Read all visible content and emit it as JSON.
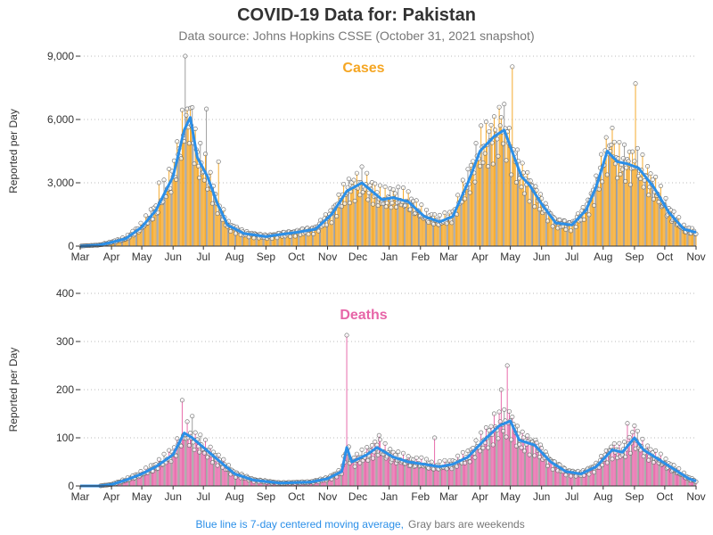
{
  "header": {
    "title": "COVID-19 Data for: Pakistan",
    "subtitle": "Data source: Johns Hopkins CSSE (October 31, 2021 snapshot)"
  },
  "footer": {
    "blue_note": "Blue line is 7-day centered moving average,",
    "gray_note": "Gray bars are weekends"
  },
  "colors": {
    "cases_bar": "#f5a623",
    "deaths_bar": "#e765a8",
    "weekend_bar": "#999999",
    "moving_average": "#2b8fe8",
    "grid": "#bbbbbb"
  },
  "chart_data": [
    {
      "type": "bar",
      "title": "Cases",
      "ylabel": "Reported per Day",
      "ylim": [
        0,
        9000
      ],
      "yticks": [
        "0",
        "3,000",
        "6,000",
        "9,000"
      ],
      "xticks": [
        "Mar",
        "Apr",
        "May",
        "Jun",
        "Jul",
        "Aug",
        "Sep",
        "Oct",
        "Nov",
        "Dec",
        "Jan",
        "Feb",
        "Mar",
        "Apr",
        "May",
        "Jun",
        "Jul",
        "Aug",
        "Sep",
        "Oct",
        "Nov"
      ],
      "grid": "horizontal dotted",
      "x_range": [
        "2020-03-01",
        "2021-11-01"
      ],
      "moving_average_keypoints": [
        [
          "2020-03-01",
          0
        ],
        [
          "2020-03-20",
          50
        ],
        [
          "2020-04-01",
          180
        ],
        [
          "2020-04-15",
          350
        ],
        [
          "2020-05-01",
          900
        ],
        [
          "2020-05-15",
          1700
        ],
        [
          "2020-06-01",
          3300
        ],
        [
          "2020-06-12",
          5500
        ],
        [
          "2020-06-18",
          6100
        ],
        [
          "2020-06-25",
          4200
        ],
        [
          "2020-07-05",
          3300
        ],
        [
          "2020-07-15",
          2000
        ],
        [
          "2020-07-25",
          1000
        ],
        [
          "2020-08-10",
          600
        ],
        [
          "2020-09-01",
          450
        ],
        [
          "2020-09-15",
          550
        ],
        [
          "2020-10-01",
          650
        ],
        [
          "2020-10-20",
          800
        ],
        [
          "2020-11-05",
          1500
        ],
        [
          "2020-11-20",
          2600
        ],
        [
          "2020-12-05",
          3000
        ],
        [
          "2020-12-15",
          2600
        ],
        [
          "2020-12-25",
          2200
        ],
        [
          "2021-01-05",
          2300
        ],
        [
          "2021-01-20",
          2100
        ],
        [
          "2021-02-05",
          1400
        ],
        [
          "2021-02-20",
          1150
        ],
        [
          "2021-03-05",
          1400
        ],
        [
          "2021-03-20",
          3000
        ],
        [
          "2021-04-01",
          4500
        ],
        [
          "2021-04-15",
          5200
        ],
        [
          "2021-04-25",
          5500
        ],
        [
          "2021-05-05",
          4200
        ],
        [
          "2021-05-12",
          3300
        ],
        [
          "2021-05-20",
          2900
        ],
        [
          "2021-06-01",
          2000
        ],
        [
          "2021-06-15",
          1100
        ],
        [
          "2021-07-01",
          1000
        ],
        [
          "2021-07-15",
          1700
        ],
        [
          "2021-07-25",
          2800
        ],
        [
          "2021-08-05",
          4500
        ],
        [
          "2021-08-15",
          4000
        ],
        [
          "2021-08-25",
          3900
        ],
        [
          "2021-09-05",
          3700
        ],
        [
          "2021-09-20",
          2800
        ],
        [
          "2021-10-05",
          1600
        ],
        [
          "2021-10-20",
          800
        ],
        [
          "2021-11-01",
          650
        ]
      ],
      "spikes": [
        [
          "2020-06-13",
          9000
        ],
        [
          "2020-06-14",
          6200
        ],
        [
          "2020-06-15",
          6500
        ],
        [
          "2020-07-04",
          6500
        ],
        [
          "2020-07-16",
          4000
        ],
        [
          "2021-05-03",
          8500
        ],
        [
          "2021-04-22",
          6100
        ],
        [
          "2021-09-02",
          7700
        ],
        [
          "2020-05-18",
          3000
        ],
        [
          "2021-08-10",
          5600
        ]
      ]
    },
    {
      "type": "bar",
      "title": "Deaths",
      "ylabel": "Reported per Day",
      "ylim": [
        0,
        400
      ],
      "yticks": [
        "0",
        "100",
        "200",
        "300",
        "400"
      ],
      "xticks": [
        "Mar",
        "Apr",
        "May",
        "Jun",
        "Jul",
        "Aug",
        "Sep",
        "Oct",
        "Nov",
        "Dec",
        "Jan",
        "Feb",
        "Mar",
        "Apr",
        "May",
        "Jun",
        "Jul",
        "Aug",
        "Sep",
        "Oct",
        "Nov"
      ],
      "grid": "horizontal dotted",
      "x_range": [
        "2020-03-01",
        "2021-11-01"
      ],
      "moving_average_keypoints": [
        [
          "2020-03-01",
          0
        ],
        [
          "2020-03-20",
          0
        ],
        [
          "2020-04-01",
          3
        ],
        [
          "2020-04-15",
          12
        ],
        [
          "2020-05-01",
          25
        ],
        [
          "2020-05-15",
          40
        ],
        [
          "2020-06-01",
          65
        ],
        [
          "2020-06-12",
          110
        ],
        [
          "2020-06-20",
          100
        ],
        [
          "2020-07-01",
          80
        ],
        [
          "2020-07-15",
          55
        ],
        [
          "2020-08-01",
          25
        ],
        [
          "2020-08-20",
          12
        ],
        [
          "2020-09-15",
          6
        ],
        [
          "2020-10-15",
          8
        ],
        [
          "2020-11-01",
          15
        ],
        [
          "2020-11-15",
          30
        ],
        [
          "2020-11-20",
          80
        ],
        [
          "2020-11-25",
          50
        ],
        [
          "2020-12-10",
          65
        ],
        [
          "2020-12-20",
          80
        ],
        [
          "2021-01-05",
          60
        ],
        [
          "2021-01-20",
          50
        ],
        [
          "2021-02-05",
          45
        ],
        [
          "2021-02-20",
          40
        ],
        [
          "2021-03-05",
          45
        ],
        [
          "2021-03-20",
          60
        ],
        [
          "2021-04-05",
          95
        ],
        [
          "2021-04-20",
          125
        ],
        [
          "2021-05-01",
          135
        ],
        [
          "2021-05-10",
          95
        ],
        [
          "2021-05-25",
          85
        ],
        [
          "2021-06-10",
          50
        ],
        [
          "2021-06-25",
          30
        ],
        [
          "2021-07-10",
          25
        ],
        [
          "2021-07-25",
          40
        ],
        [
          "2021-08-10",
          75
        ],
        [
          "2021-08-20",
          70
        ],
        [
          "2021-09-01",
          100
        ],
        [
          "2021-09-10",
          75
        ],
        [
          "2021-09-25",
          55
        ],
        [
          "2021-10-10",
          35
        ],
        [
          "2021-10-25",
          15
        ],
        [
          "2021-11-01",
          10
        ]
      ],
      "spikes": [
        [
          "2020-11-20",
          313
        ],
        [
          "2021-04-28",
          250
        ],
        [
          "2021-04-22",
          200
        ],
        [
          "2020-06-10",
          178
        ],
        [
          "2021-04-15",
          150
        ],
        [
          "2020-06-20",
          145
        ],
        [
          "2021-08-25",
          130
        ],
        [
          "2020-12-22",
          105
        ],
        [
          "2021-09-01",
          125
        ],
        [
          "2021-02-15",
          100
        ]
      ]
    }
  ]
}
